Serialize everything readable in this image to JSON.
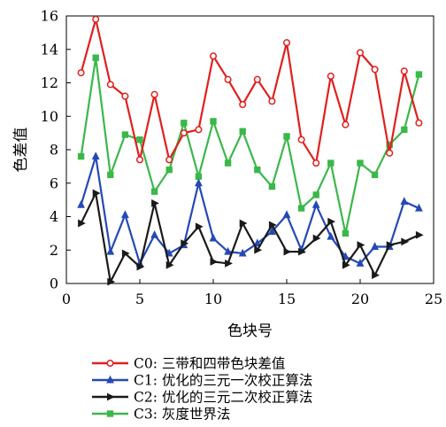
{
  "chart_data": {
    "type": "line",
    "xlabel": "色块号",
    "ylabel": "色差值",
    "xlim": [
      0,
      25
    ],
    "ylim": [
      0,
      16
    ],
    "xticks": [
      0,
      5,
      10,
      15,
      20,
      25
    ],
    "yticks": [
      0,
      2,
      4,
      6,
      8,
      10,
      12,
      14,
      16
    ],
    "grid": false,
    "legend_position": "bottom",
    "x": [
      1,
      2,
      3,
      4,
      5,
      6,
      7,
      8,
      9,
      10,
      11,
      12,
      13,
      14,
      15,
      16,
      17,
      18,
      19,
      20,
      21,
      22,
      23,
      24
    ],
    "series": [
      {
        "name": "C0: 三带和四带色块差值",
        "color": "#e0201e",
        "marker": "circle",
        "values": [
          12.6,
          15.8,
          11.9,
          11.2,
          7.4,
          11.3,
          7.4,
          9.0,
          9.2,
          13.6,
          12.2,
          10.7,
          12.2,
          10.9,
          14.4,
          8.6,
          7.2,
          12.4,
          9.5,
          13.8,
          12.8,
          7.8,
          12.7,
          9.6
        ]
      },
      {
        "name": "C1: 优化的三元一次校正算法",
        "color": "#2549b5",
        "marker": "triangle-up",
        "values": [
          4.7,
          7.6,
          1.9,
          4.1,
          1.2,
          2.9,
          1.8,
          2.3,
          6.0,
          2.7,
          1.9,
          1.8,
          2.4,
          3.1,
          4.1,
          2.0,
          4.7,
          2.8,
          1.6,
          1.2,
          2.2,
          2.2,
          4.9,
          4.5
        ]
      },
      {
        "name": "C2: 优化的三元二次校正算法",
        "color": "#1a1a1a",
        "marker": "triangle-right",
        "values": [
          3.6,
          5.4,
          0.1,
          1.8,
          1.0,
          4.8,
          1.1,
          2.4,
          3.4,
          1.3,
          1.2,
          3.6,
          2.0,
          3.5,
          1.9,
          1.9,
          2.7,
          3.7,
          1.1,
          2.3,
          0.5,
          2.3,
          2.5,
          2.9
        ]
      },
      {
        "name": "C3: 灰度世界法",
        "color": "#3bb84a",
        "marker": "square",
        "values": [
          7.6,
          13.5,
          6.5,
          8.9,
          8.6,
          5.5,
          6.8,
          9.6,
          6.4,
          9.7,
          7.2,
          9.1,
          6.8,
          5.8,
          8.8,
          4.5,
          5.3,
          7.2,
          3.0,
          7.2,
          6.5,
          8.3,
          9.2,
          12.5
        ]
      }
    ]
  }
}
